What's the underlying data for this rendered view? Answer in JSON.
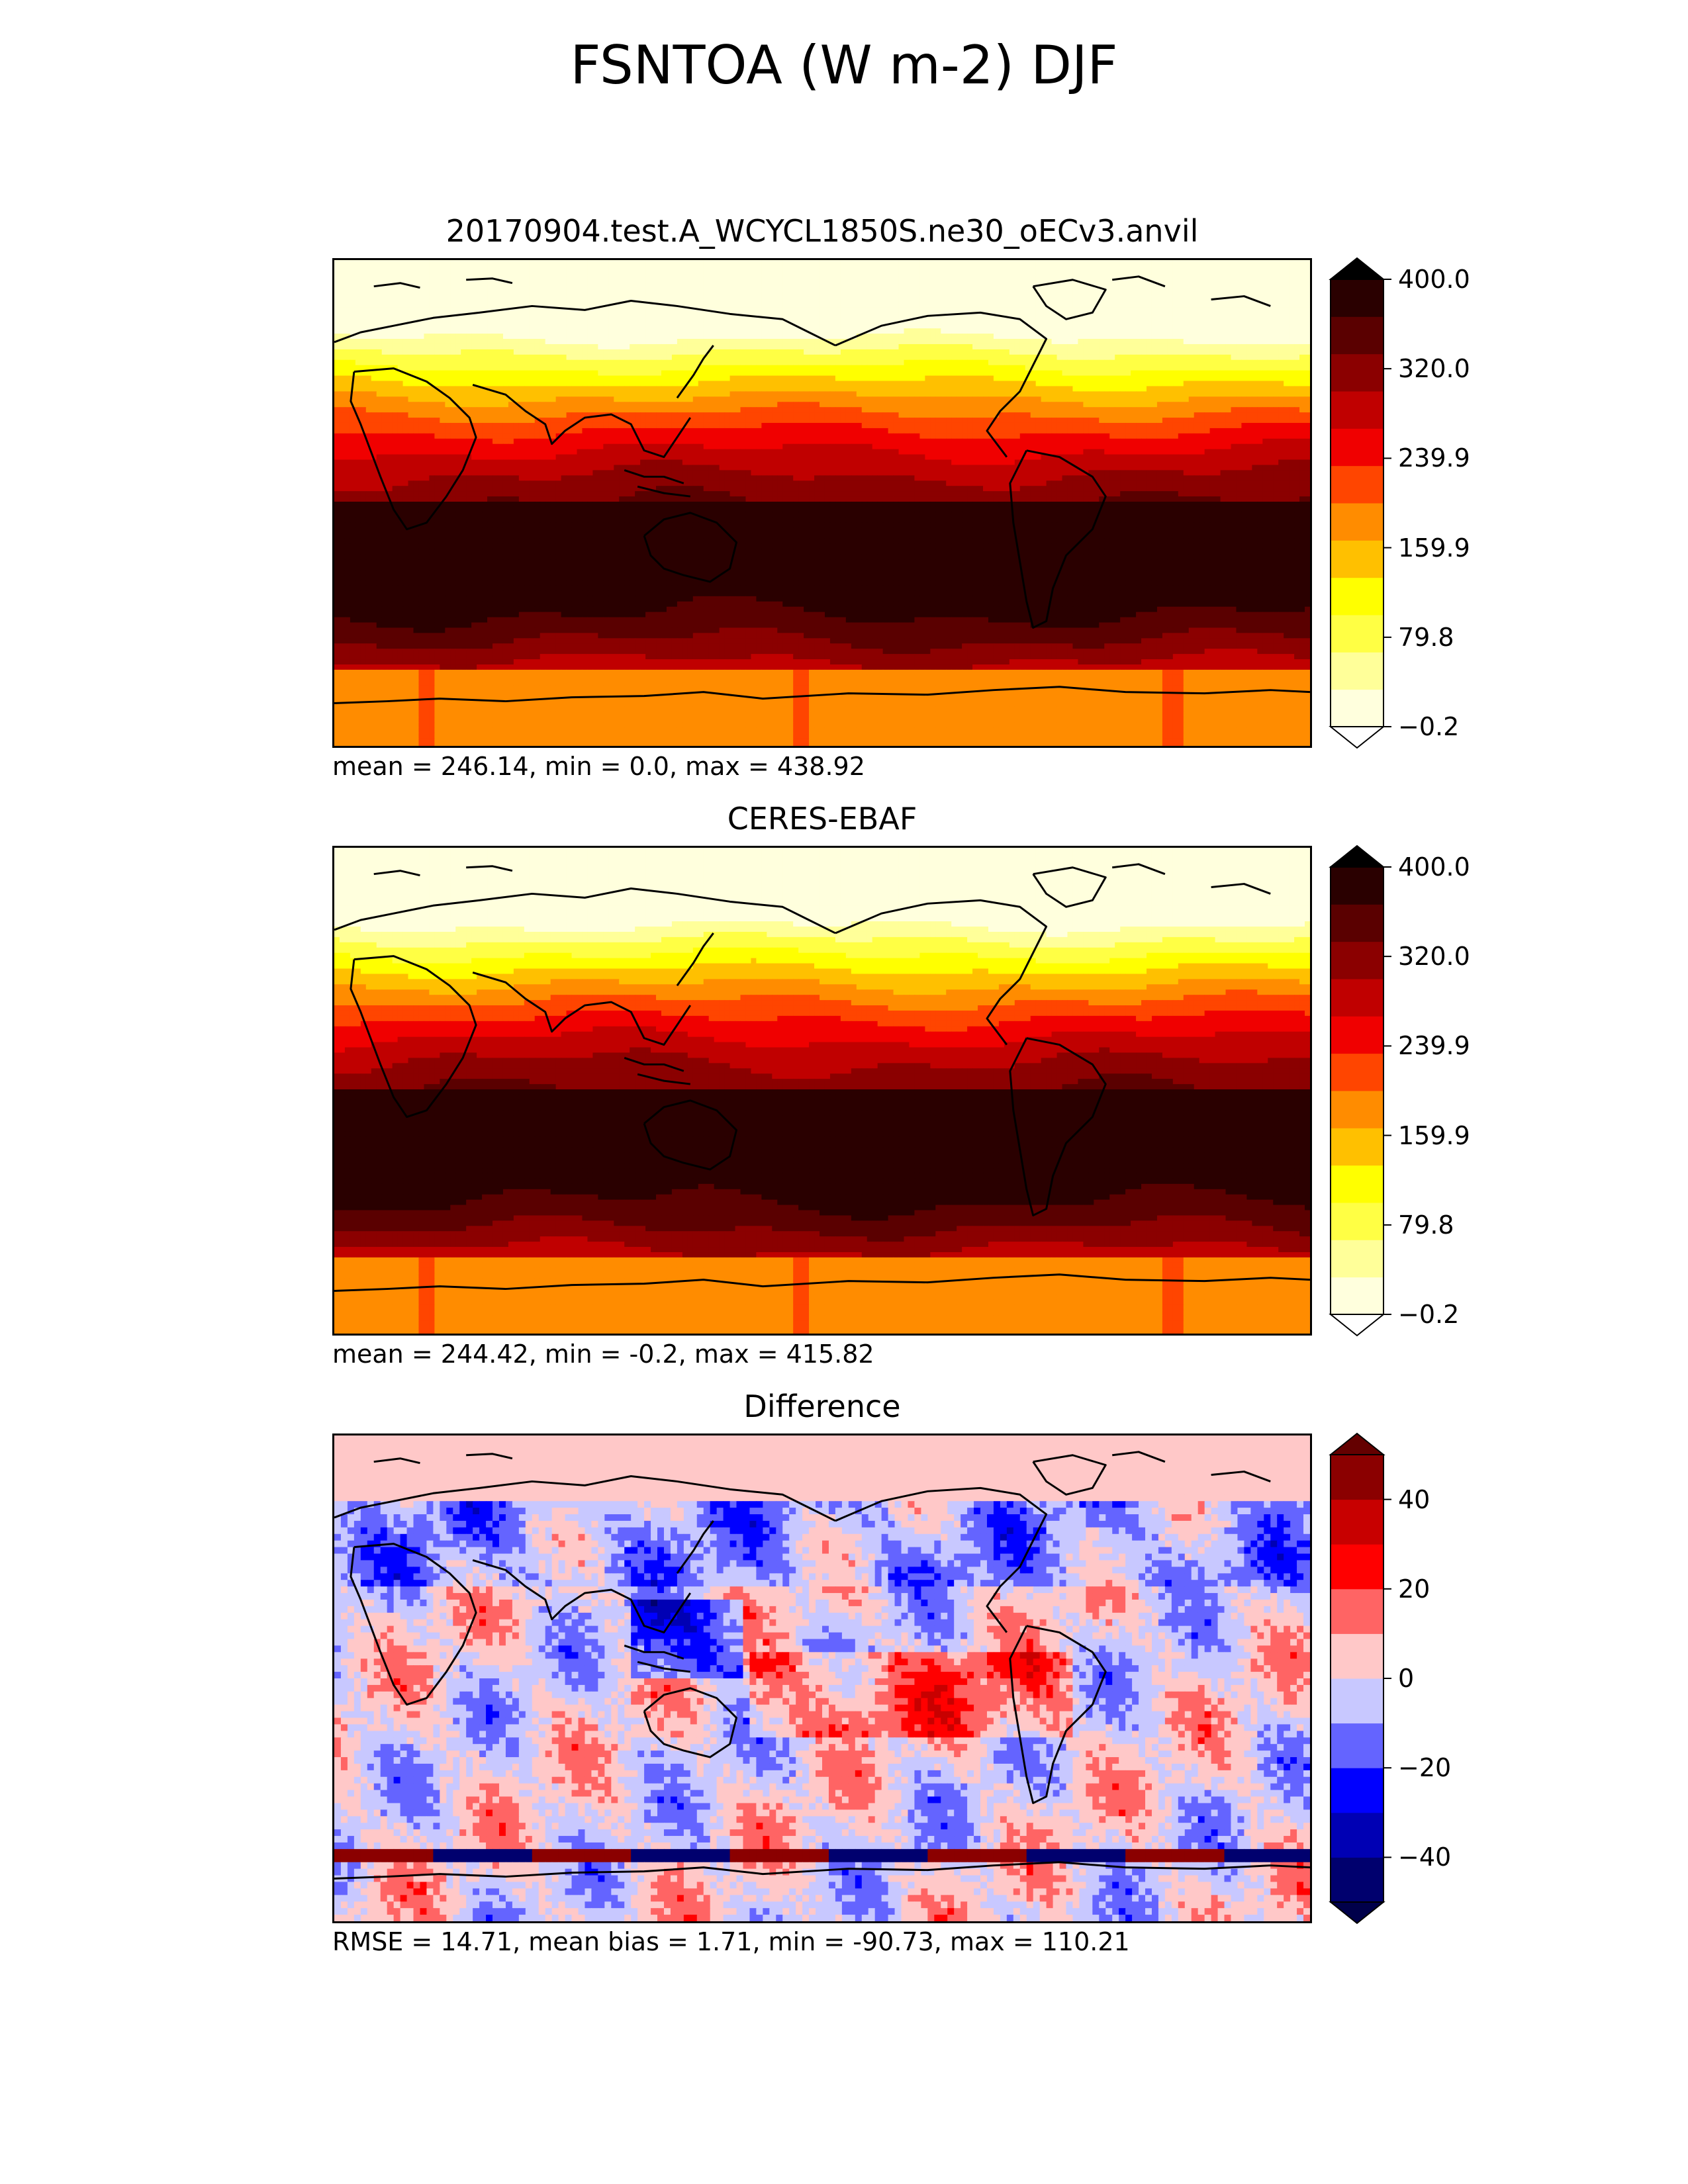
{
  "figure": {
    "title": "FSNTOA (W m-2) DJF"
  },
  "colormaps": {
    "hot": [
      "#ffffdd",
      "#ffff99",
      "#ffff44",
      "#ffff00",
      "#ffc000",
      "#ff8c00",
      "#ff4500",
      "#f00000",
      "#c00000",
      "#8b0000",
      "#5a0000",
      "#2a0000"
    ],
    "hot_under": "#ffffff",
    "hot_over": "#000000",
    "diverging": [
      "#00006e",
      "#0000b4",
      "#0000ff",
      "#6464ff",
      "#c8c8ff",
      "#ffc8c8",
      "#ff6464",
      "#ff0000",
      "#c80000",
      "#8b0000"
    ],
    "div_under": "#00004a",
    "div_over": "#640000"
  },
  "chart_data": [
    {
      "type": "heatmap",
      "title": "20170904.test.A_WCYCL1850S.ne30_oECv3.anvil",
      "stats": "mean = 246.14, min = 0.0, max = 438.92",
      "colorbar": {
        "ticks": [
          "400.0",
          "320.0",
          "239.9",
          "159.9",
          "79.8",
          "−0.2"
        ],
        "range": [
          -0.2,
          400.0
        ],
        "extend": "both"
      },
      "zonal_bands_description_levels": [
        0,
        0,
        1,
        2,
        3,
        4,
        5,
        6,
        7,
        8,
        9,
        10,
        11,
        11,
        10,
        9,
        8,
        7,
        6,
        5,
        4,
        4
      ]
    },
    {
      "type": "heatmap",
      "title": "CERES-EBAF",
      "stats": "mean = 244.42, min = -0.2, max = 415.82",
      "colorbar": {
        "ticks": [
          "400.0",
          "320.0",
          "239.9",
          "159.9",
          "79.8",
          "−0.2"
        ],
        "range": [
          -0.2,
          400.0
        ],
        "extend": "both"
      },
      "zonal_bands_description_levels": [
        0,
        0,
        1,
        2,
        3,
        4,
        5,
        6,
        7,
        8,
        9,
        10,
        11,
        11,
        10,
        9,
        8,
        7,
        6,
        5,
        4,
        4
      ]
    },
    {
      "type": "heatmap",
      "title": "Difference",
      "stats": "RMSE = 14.71, mean bias = 1.71, min = -90.73, max = 110.21",
      "colorbar": {
        "ticks": [
          "40",
          "20",
          "0",
          "−20",
          "−40"
        ],
        "range": [
          -50,
          50
        ],
        "extend": "both"
      }
    }
  ]
}
